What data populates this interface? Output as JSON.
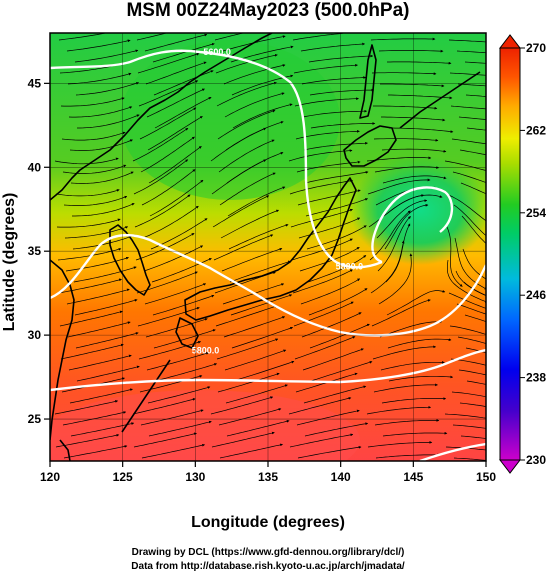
{
  "title": "MSM 00Z24May2023 (500.0hPa)",
  "xlabel": "Longitude (degrees)",
  "ylabel": "Latitude  (degrees)",
  "x_ticks": [
    {
      "value": 120,
      "label": "120"
    },
    {
      "value": 125,
      "label": "125"
    },
    {
      "value": 130,
      "label": "130"
    },
    {
      "value": 135,
      "label": "135"
    },
    {
      "value": 140,
      "label": "140"
    },
    {
      "value": 145,
      "label": "145"
    },
    {
      "value": 150,
      "label": "150"
    }
  ],
  "y_ticks": [
    {
      "value": 25,
      "label": "25"
    },
    {
      "value": 30,
      "label": "30"
    },
    {
      "value": 35,
      "label": "35"
    },
    {
      "value": 40,
      "label": "40"
    },
    {
      "value": 45,
      "label": "45"
    }
  ],
  "colorbar": {
    "min": 230,
    "max": 270,
    "ticks": [
      {
        "value": 230,
        "label": "230"
      },
      {
        "value": 238,
        "label": "238"
      },
      {
        "value": 246,
        "label": "246"
      },
      {
        "value": 254,
        "label": "254"
      },
      {
        "value": 262,
        "label": "262"
      },
      {
        "value": 270,
        "label": "270"
      }
    ]
  },
  "contour_labels": [
    {
      "text": "5600.0",
      "lon": 131.5,
      "lat": 46.7
    },
    {
      "text": "5800.0",
      "lon": 140.6,
      "lat": 33.9
    },
    {
      "text": "5800.0",
      "lon": 130.7,
      "lat": 28.9
    }
  ],
  "credits": {
    "line1": "Drawing by DCL (https://www.gfd-dennou.org/library/dcl/)",
    "line2": "Data from http://database.rish.kyoto-u.ac.jp/arch/jmadata/"
  },
  "colors": {
    "frame": "#000000",
    "contour": "#ffffff",
    "coast": "#000000"
  }
}
